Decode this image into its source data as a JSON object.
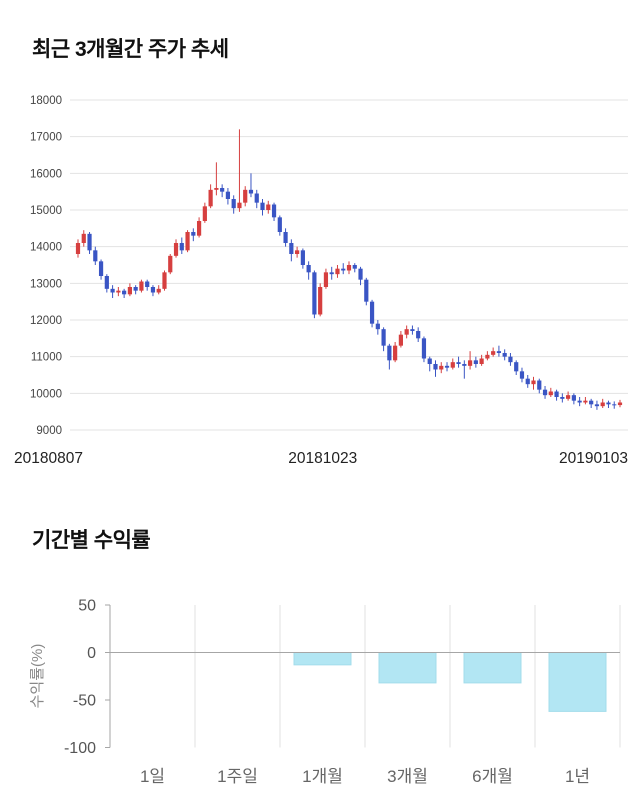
{
  "chart_data": [
    {
      "type": "candlestick",
      "title": "최근 3개월간 주가 추세",
      "x_labels": [
        "20180807",
        "20181023",
        "20190103"
      ],
      "y_ticks": [
        18000,
        17000,
        16000,
        15000,
        14000,
        13000,
        12000,
        11000,
        10000,
        9000
      ],
      "ylim": [
        9000,
        18000
      ],
      "grid": true,
      "up_color": "#d63f3f",
      "down_color": "#3a55c4",
      "grid_color": "#e3e3e3",
      "tick_text_color": "#444444",
      "candles": [
        [
          13800,
          14200,
          13700,
          14100
        ],
        [
          14100,
          14450,
          14000,
          14350
        ],
        [
          14350,
          14400,
          13800,
          13900
        ],
        [
          13900,
          14000,
          13500,
          13600
        ],
        [
          13600,
          13650,
          13100,
          13200
        ],
        [
          13200,
          13250,
          12750,
          12850
        ],
        [
          12850,
          12950,
          12600,
          12750
        ],
        [
          12750,
          12900,
          12650,
          12800
        ],
        [
          12800,
          12850,
          12600,
          12700
        ],
        [
          12700,
          13000,
          12650,
          12900
        ],
        [
          12900,
          12950,
          12700,
          12800
        ],
        [
          12800,
          13100,
          12750,
          13050
        ],
        [
          13050,
          13100,
          12800,
          12900
        ],
        [
          12900,
          12950,
          12650,
          12750
        ],
        [
          12750,
          12950,
          12700,
          12850
        ],
        [
          12850,
          13350,
          12800,
          13300
        ],
        [
          13300,
          13800,
          13250,
          13750
        ],
        [
          13750,
          14200,
          13700,
          14100
        ],
        [
          14100,
          14250,
          13800,
          13900
        ],
        [
          13900,
          14450,
          13850,
          14400
        ],
        [
          14400,
          14500,
          14150,
          14300
        ],
        [
          14300,
          14800,
          14250,
          14700
        ],
        [
          14700,
          15200,
          14650,
          15100
        ],
        [
          15100,
          15700,
          15050,
          15550
        ],
        [
          15550,
          16300,
          15400,
          15600
        ],
        [
          15600,
          15700,
          15350,
          15500
        ],
        [
          15500,
          15600,
          15150,
          15300
        ],
        [
          15300,
          15400,
          14900,
          15050
        ],
        [
          15050,
          17200,
          14950,
          15200
        ],
        [
          15200,
          15650,
          15100,
          15550
        ],
        [
          15550,
          16000,
          15350,
          15450
        ],
        [
          15450,
          15550,
          15050,
          15200
        ],
        [
          15200,
          15300,
          14850,
          15000
        ],
        [
          15000,
          15250,
          14900,
          15150
        ],
        [
          15150,
          15200,
          14700,
          14800
        ],
        [
          14800,
          14850,
          14300,
          14400
        ],
        [
          14400,
          14500,
          14000,
          14100
        ],
        [
          14100,
          14200,
          13600,
          13800
        ],
        [
          13800,
          14000,
          13700,
          13900
        ],
        [
          13900,
          13950,
          13400,
          13500
        ],
        [
          13500,
          13600,
          13100,
          13300
        ],
        [
          13300,
          13350,
          12050,
          12150
        ],
        [
          12150,
          13000,
          12100,
          12900
        ],
        [
          12900,
          13400,
          12850,
          13300
        ],
        [
          13300,
          13450,
          13100,
          13250
        ],
        [
          13250,
          13500,
          13150,
          13400
        ],
        [
          13400,
          13550,
          13250,
          13350
        ],
        [
          13350,
          13600,
          13250,
          13500
        ],
        [
          13500,
          13550,
          13300,
          13400
        ],
        [
          13400,
          13450,
          12950,
          13100
        ],
        [
          13100,
          13150,
          12400,
          12500
        ],
        [
          12500,
          12550,
          11800,
          11900
        ],
        [
          11900,
          12000,
          11600,
          11750
        ],
        [
          11750,
          11800,
          11150,
          11300
        ],
        [
          11300,
          11350,
          10650,
          10900
        ],
        [
          10900,
          11400,
          10850,
          11300
        ],
        [
          11300,
          11700,
          11250,
          11600
        ],
        [
          11600,
          11850,
          11500,
          11750
        ],
        [
          11750,
          11850,
          11600,
          11700
        ],
        [
          11700,
          11800,
          11400,
          11500
        ],
        [
          11500,
          11550,
          10850,
          10950
        ],
        [
          10950,
          11000,
          10600,
          10800
        ],
        [
          10800,
          10900,
          10450,
          10650
        ],
        [
          10650,
          10850,
          10550,
          10750
        ],
        [
          10750,
          10850,
          10600,
          10700
        ],
        [
          10700,
          10950,
          10650,
          10850
        ],
        [
          10850,
          11000,
          10700,
          10800
        ],
        [
          10800,
          10900,
          10400,
          10750
        ],
        [
          10750,
          11150,
          10650,
          10900
        ],
        [
          10900,
          11000,
          10700,
          10800
        ],
        [
          10800,
          11050,
          10750,
          10950
        ],
        [
          10950,
          11150,
          10900,
          11050
        ],
        [
          11050,
          11250,
          11000,
          11150
        ],
        [
          11150,
          11300,
          11000,
          11100
        ],
        [
          11100,
          11200,
          10900,
          11000
        ],
        [
          11000,
          11100,
          10750,
          10850
        ],
        [
          10850,
          10900,
          10500,
          10600
        ],
        [
          10600,
          10700,
          10300,
          10400
        ],
        [
          10400,
          10500,
          10150,
          10250
        ],
        [
          10250,
          10450,
          10100,
          10350
        ],
        [
          10350,
          10400,
          10000,
          10100
        ],
        [
          10100,
          10200,
          9850,
          9950
        ],
        [
          9950,
          10150,
          9900,
          10050
        ],
        [
          10050,
          10100,
          9800,
          9900
        ],
        [
          9900,
          10000,
          9750,
          9850
        ],
        [
          9850,
          10050,
          9800,
          9950
        ],
        [
          9950,
          10000,
          9700,
          9800
        ],
        [
          9800,
          9900,
          9650,
          9750
        ],
        [
          9750,
          9900,
          9700,
          9800
        ],
        [
          9800,
          9850,
          9600,
          9700
        ],
        [
          9700,
          9800,
          9550,
          9650
        ],
        [
          9650,
          9850,
          9600,
          9750
        ],
        [
          9750,
          9800,
          9600,
          9700
        ],
        [
          9700,
          9780,
          9580,
          9680
        ],
        [
          9680,
          9820,
          9620,
          9750
        ]
      ]
    },
    {
      "type": "bar",
      "title": "기간별 수익률",
      "ylabel": "수익률(%)",
      "categories": [
        "1일",
        "1주일",
        "1개월",
        "3개월",
        "6개월",
        "1년"
      ],
      "values": [
        0,
        0,
        -13,
        -32,
        -32,
        -62
      ],
      "y_ticks": [
        50,
        0,
        -50,
        -100
      ],
      "ylim": [
        -100,
        50
      ],
      "grid": true,
      "legend": "none",
      "bar_color": "#b2e6f3",
      "bar_edge_color": "#a3dceb",
      "axis_color": "#a6a6a6",
      "grid_color": "#e2e2e2",
      "tick_text_color": "#555555",
      "category_text_color": "#666666",
      "ylabel_color": "#888888"
    }
  ]
}
